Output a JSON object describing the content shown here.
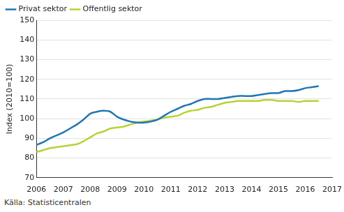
{
  "chart_data": {
    "type": "line",
    "y_label": "Index (2010=100)",
    "source": "Källa: Statisticentralen",
    "x": [
      2006.0,
      2006.25,
      2006.5,
      2006.75,
      2007.0,
      2007.25,
      2007.5,
      2007.75,
      2008.0,
      2008.25,
      2008.5,
      2008.75,
      2009.0,
      2009.25,
      2009.5,
      2009.75,
      2010.0,
      2010.25,
      2010.5,
      2010.75,
      2011.0,
      2011.25,
      2011.5,
      2011.75,
      2012.0,
      2012.25,
      2012.5,
      2012.75,
      2013.0,
      2013.25,
      2013.5,
      2013.75,
      2014.0,
      2014.25,
      2014.5,
      2014.75,
      2015.0,
      2015.25,
      2015.5,
      2015.75,
      2016.0,
      2016.25,
      2016.5
    ],
    "series": [
      {
        "name": "Privat sektor",
        "color": "#1f77b4",
        "values": [
          86.7,
          88,
          90,
          91.5,
          93,
          95,
          97,
          99.5,
          102.5,
          103.5,
          104,
          103.5,
          101,
          99.5,
          98.5,
          98,
          98,
          98.5,
          99.5,
          101.5,
          103.5,
          105,
          106.5,
          107.5,
          109,
          110,
          110,
          110,
          110.5,
          111,
          111.5,
          111.5,
          111.5,
          112,
          112.5,
          113,
          113,
          114,
          114,
          114.5,
          115.5,
          116,
          116.5
        ]
      },
      {
        "name": "Offentlig sektor",
        "color": "#b5d334",
        "values": [
          83,
          84,
          85,
          85.5,
          86,
          86.5,
          87,
          88.5,
          90.5,
          92.5,
          93.5,
          95,
          95.5,
          96,
          97,
          98,
          98.5,
          99,
          99.5,
          100.5,
          101,
          101.5,
          103,
          104,
          104.5,
          105.5,
          106,
          107,
          108,
          108.5,
          109,
          109,
          109,
          109,
          109.5,
          109.5,
          109,
          109,
          109,
          108.5,
          109,
          109,
          109
        ]
      }
    ],
    "xlim": [
      2006,
      2017
    ],
    "xticks": [
      2006,
      2007,
      2008,
      2009,
      2010,
      2011,
      2012,
      2013,
      2014,
      2015,
      2016,
      2017
    ],
    "ylim": [
      70,
      150
    ],
    "yticks": [
      70,
      80,
      90,
      100,
      110,
      120,
      130,
      140,
      150
    ],
    "grid": true,
    "legend": "upper left"
  }
}
